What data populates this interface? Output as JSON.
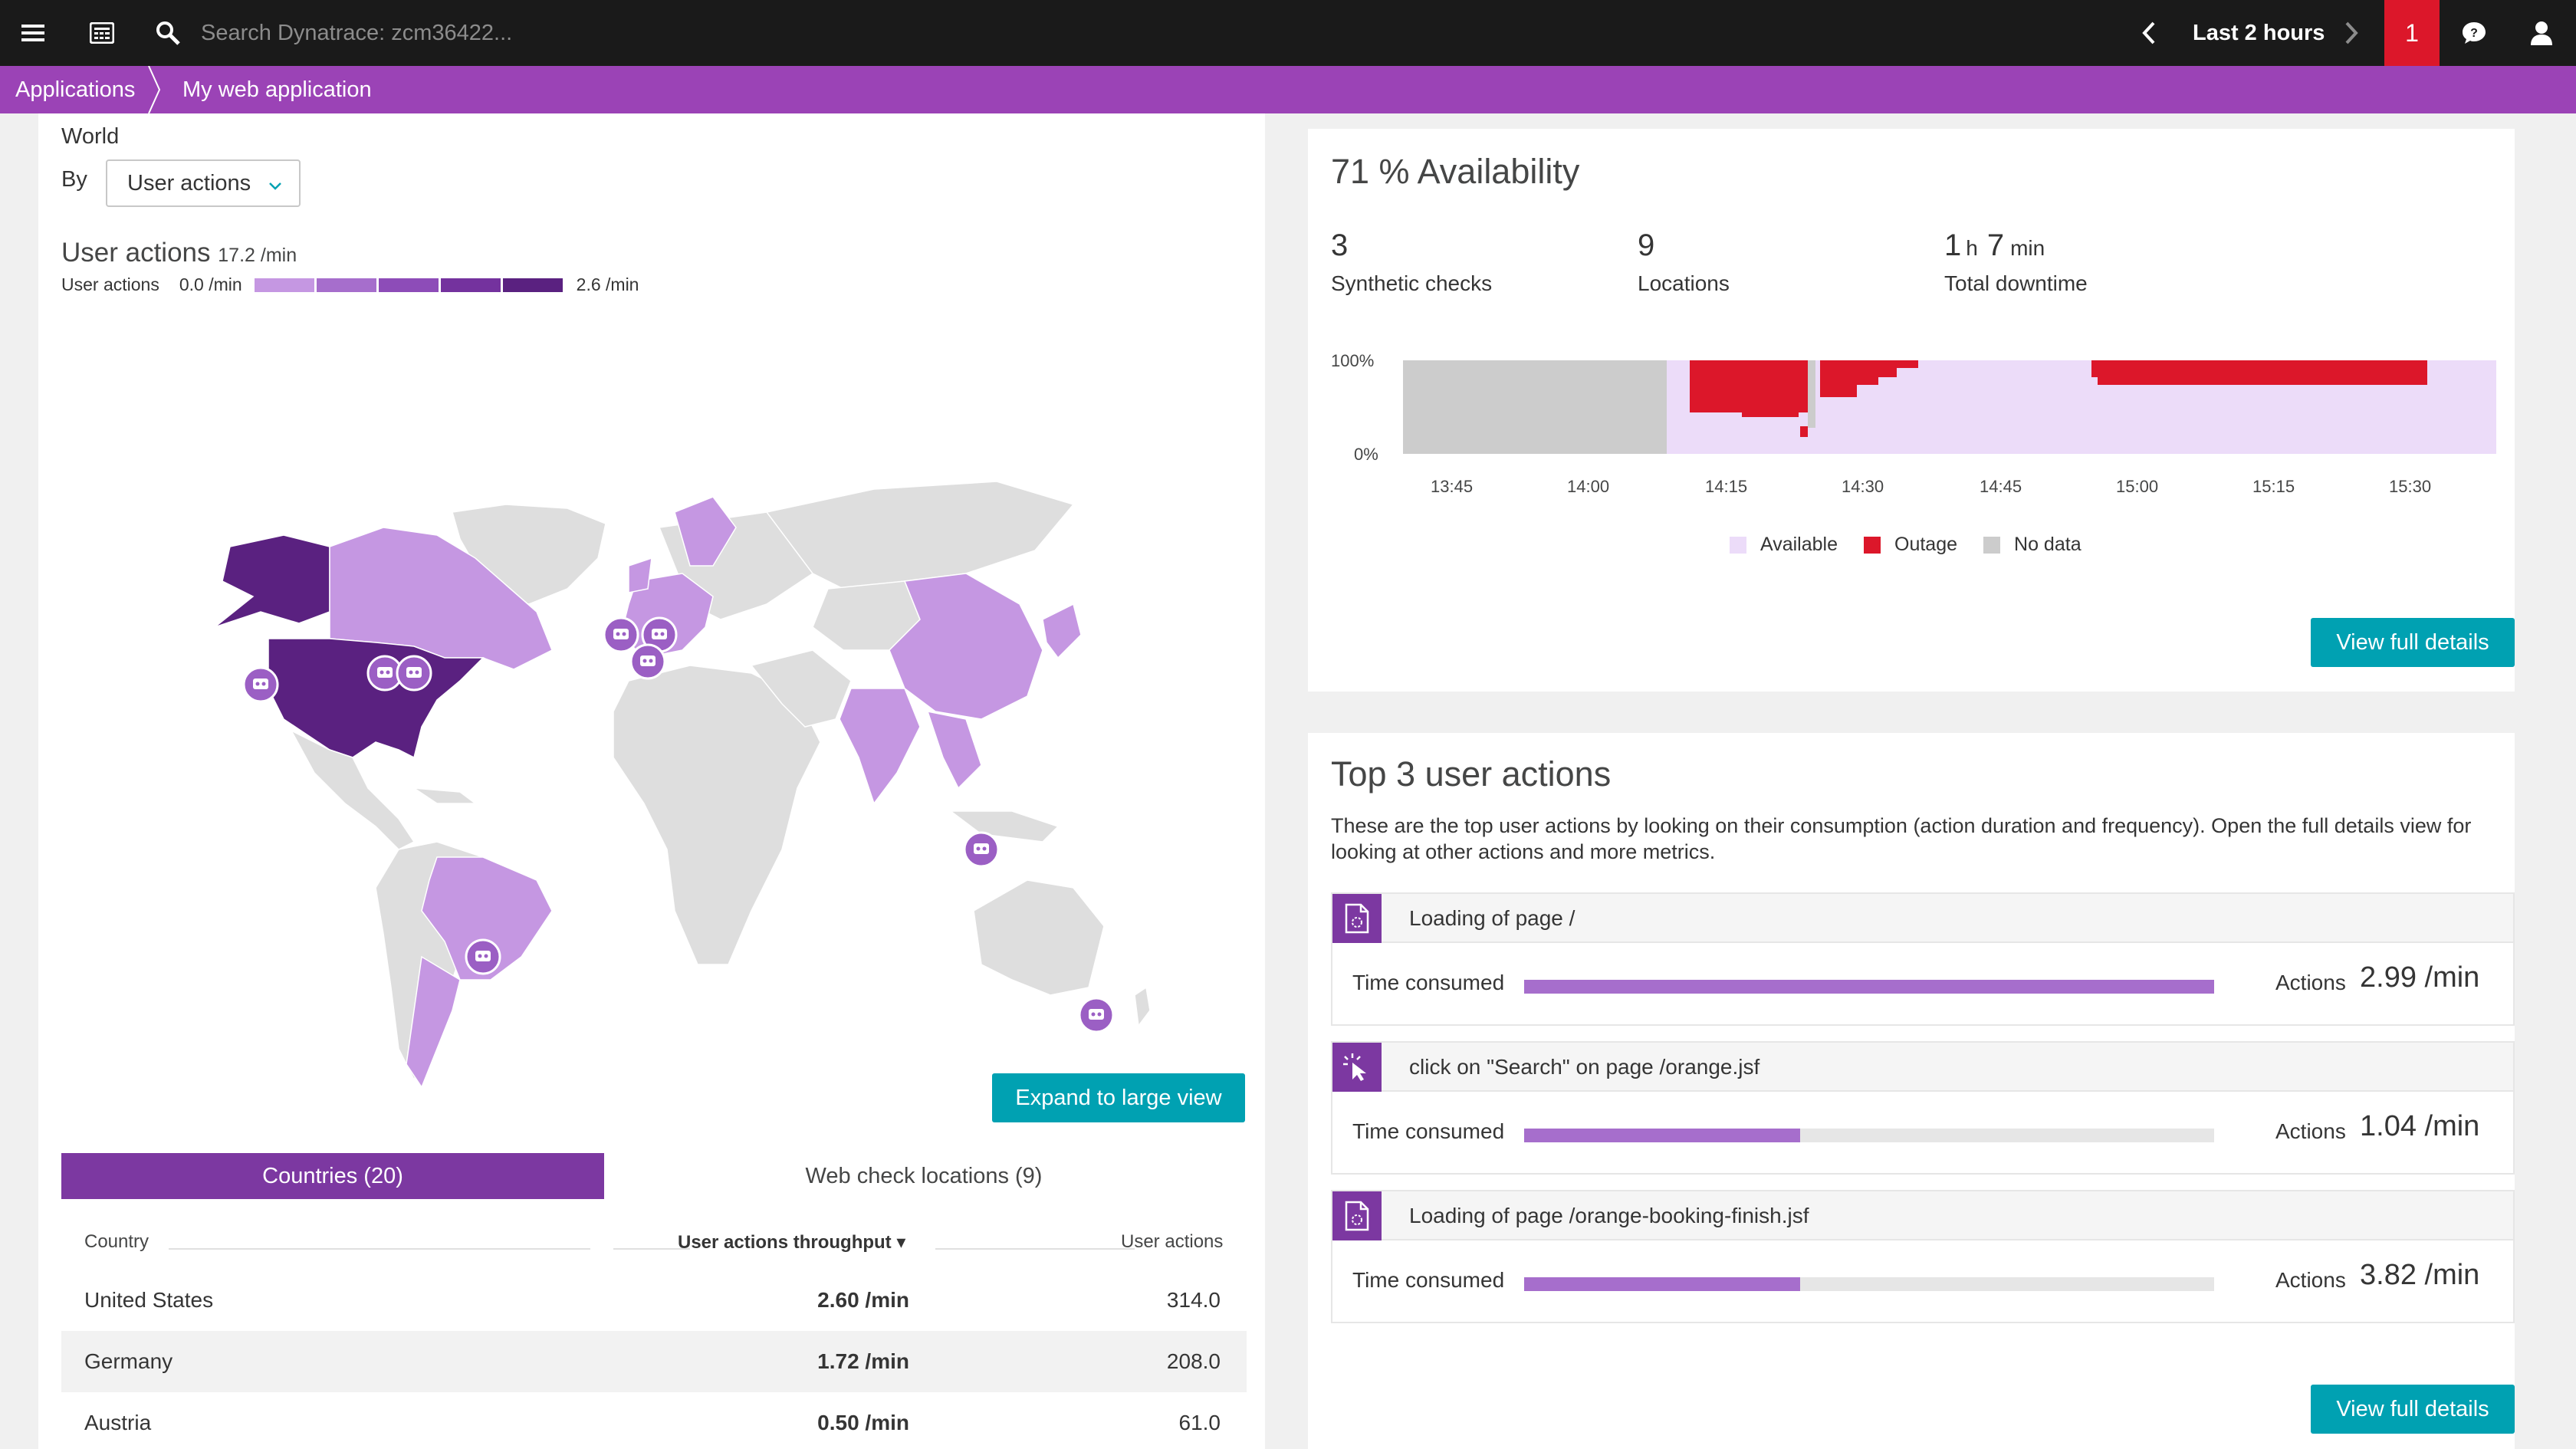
{
  "topbar": {
    "search_placeholder": "Search Dynatrace: zcm36422...",
    "timeframe": "Last 2 hours",
    "problems_count": "1"
  },
  "breadcrumb": {
    "items": [
      "Applications",
      "My web application"
    ]
  },
  "map_panel": {
    "scope": "World",
    "by_label": "By",
    "by_value": "User actions",
    "metric_title": "User actions",
    "metric_total": "17.2 /min",
    "legend_label": "User actions",
    "legend_min": "0.0 /min",
    "legend_max": "2.6 /min",
    "legend_colors": [
      "#c597e2",
      "#a66ecc",
      "#8d4cb8",
      "#74329e",
      "#5a2180"
    ],
    "expand_button": "Expand to large view",
    "tabs": [
      "Countries (20)",
      "Web check locations (9)"
    ],
    "table": {
      "columns": [
        "Country",
        "User actions throughput ▾",
        "User actions"
      ],
      "rows": [
        {
          "country": "United States",
          "throughput": "2.60 /min",
          "actions": "314.0"
        },
        {
          "country": "Germany",
          "throughput": "1.72 /min",
          "actions": "208.0"
        },
        {
          "country": "Austria",
          "throughput": "0.50 /min",
          "actions": "61.0"
        }
      ]
    }
  },
  "availability": {
    "title": "71 % Availability",
    "stats": [
      {
        "value": "3",
        "label": "Synthetic checks"
      },
      {
        "value": "9",
        "label": "Locations"
      },
      {
        "value_h": "1",
        "unit_h": "h",
        "value_m": "7",
        "unit_m": "min",
        "label": "Total downtime"
      }
    ],
    "y_labels": [
      "100%",
      "0%"
    ],
    "x_labels": [
      "13:45",
      "14:00",
      "14:15",
      "14:30",
      "14:45",
      "15:00",
      "15:15",
      "15:30"
    ],
    "legend": [
      {
        "label": "Available",
        "color": "#ecdcf9"
      },
      {
        "label": "Outage",
        "color": "#dc172a"
      },
      {
        "label": "No data",
        "color": "#cccccc"
      }
    ],
    "button": "View full details"
  },
  "top_actions": {
    "title": "Top 3 user actions",
    "description": "These are the top user actions by looking on their consumption (action duration and frequency). Open the full details view for looking at other actions and more metrics.",
    "items": [
      {
        "name": "Loading of page /",
        "time_label": "Time consumed",
        "time_fraction": 1.0,
        "actions_label": "Actions",
        "actions_value": "2.99 /min",
        "icon": "page-load-icon"
      },
      {
        "name": "click on \"Search\" on page /orange.jsf",
        "time_label": "Time consumed",
        "time_fraction": 0.4,
        "actions_label": "Actions",
        "actions_value": "1.04 /min",
        "icon": "click-icon"
      },
      {
        "name": "Loading of page /orange-booking-finish.jsf",
        "time_label": "Time consumed",
        "time_fraction": 0.4,
        "actions_label": "Actions",
        "actions_value": "3.82 /min",
        "icon": "page-load-icon"
      }
    ],
    "button": "View full details"
  }
}
